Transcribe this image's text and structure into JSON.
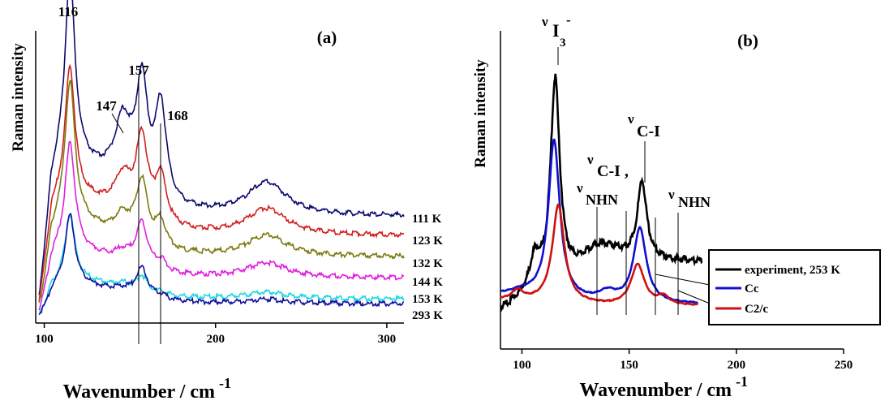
{
  "chart_data": [
    {
      "type": "line",
      "panel_label": "(a)",
      "xlabel": "Wavenumber / cm",
      "xlabel_sup": "-1",
      "ylabel": "Raman intensity",
      "xlim": [
        95,
        310
      ],
      "xticks": [
        100,
        200,
        300
      ],
      "peak_labels": [
        "116",
        "157",
        "147",
        "168"
      ],
      "series": [
        {
          "name": "111 K",
          "color": "#0a0a6e"
        },
        {
          "name": "123 K",
          "color": "#d02020"
        },
        {
          "name": "132 K",
          "color": "#7b7b10"
        },
        {
          "name": "144 K",
          "color": "#e020e0"
        },
        {
          "name": "153 K",
          "color": "#20d8e0"
        },
        {
          "name": "293 K",
          "color": "#1010a0"
        }
      ]
    },
    {
      "type": "line",
      "panel_label": "(b)",
      "xlabel": "Wavenumber / cm",
      "xlabel_sup": "-1",
      "ylabel": "Raman intensity",
      "xlim": [
        90,
        250
      ],
      "xticks": [
        100,
        150,
        200,
        250
      ],
      "annotations": {
        "nu": "ν",
        "i3_main": "I",
        "i3_sub": "3",
        "i3_sup": "-",
        "ci": "C-I",
        "ci_comma": "C-I ,",
        "nhn": "NHN"
      },
      "series": [
        {
          "name": "experiment, 253 K",
          "color": "#000000"
        },
        {
          "name": "Cc",
          "color": "#1010d0"
        },
        {
          "name": "C2/c",
          "color": "#d01010"
        }
      ]
    }
  ]
}
